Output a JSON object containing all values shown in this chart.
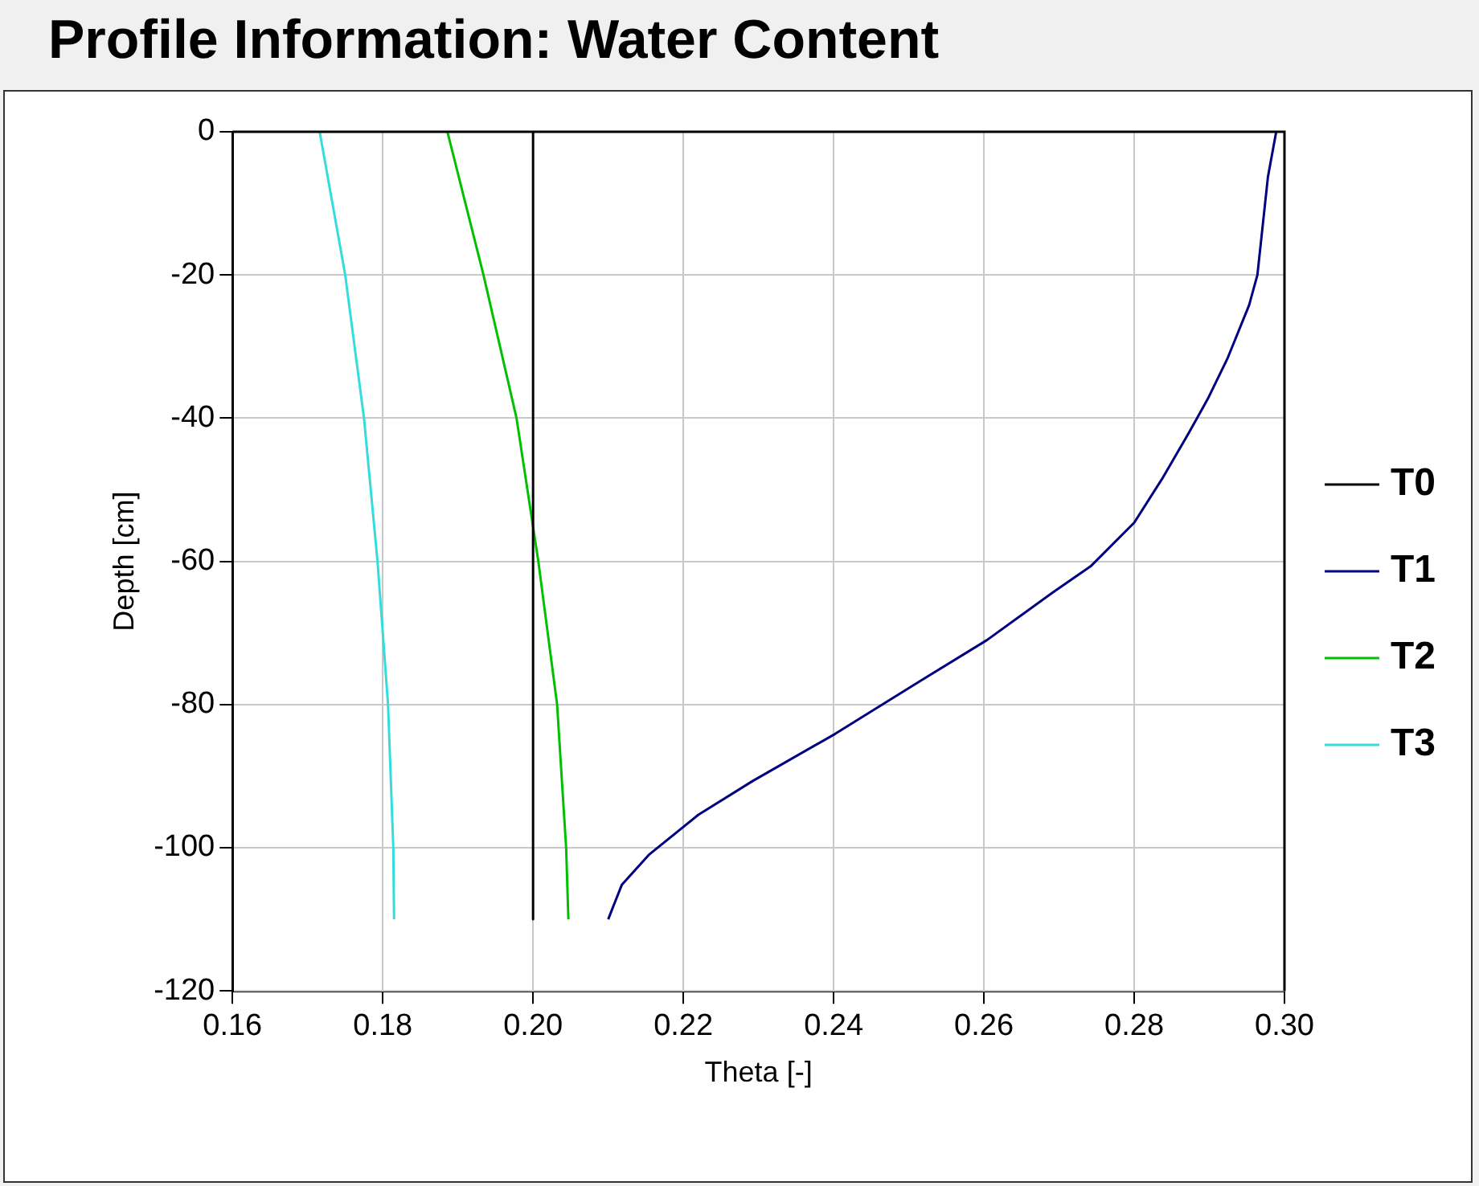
{
  "chart_data": {
    "type": "line",
    "title": "Profile Information:  Water Content",
    "xlabel": "Theta [-]",
    "ylabel": "Depth [cm]",
    "xlim": [
      0.16,
      0.3
    ],
    "xticks": [
      {
        "value": 0.16,
        "label": "0.16"
      },
      {
        "value": 0.18,
        "label": "0.18"
      },
      {
        "value": 0.2,
        "label": "0.20"
      },
      {
        "value": 0.22,
        "label": "0.22"
      },
      {
        "value": 0.24,
        "label": "0.24"
      },
      {
        "value": 0.26,
        "label": "0.26"
      },
      {
        "value": 0.28,
        "label": "0.28"
      },
      {
        "value": 0.3,
        "label": "0.30"
      }
    ],
    "ylim": [
      -120,
      0
    ],
    "yticks": [
      -120,
      -100,
      -80,
      -60,
      -40,
      -20,
      0
    ],
    "grid": true,
    "legend": "right",
    "marker": "none",
    "line_style": "solid",
    "series": [
      {
        "name": "T0",
        "color": "#000000",
        "x": [
          0.2,
          0.2
        ],
        "values": [
          0,
          -110
        ]
      },
      {
        "name": "T1",
        "color": "#000080",
        "x": [
          0.2989,
          0.2978,
          0.2964,
          0.2953,
          0.2924,
          0.2898,
          0.2873,
          0.2837,
          0.28,
          0.2742,
          0.2691,
          0.2604,
          0.2517,
          0.2402,
          0.2292,
          0.222,
          0.2154,
          0.2118,
          0.21
        ],
        "values": [
          0,
          -6.3,
          -20,
          -24.2,
          -31.7,
          -37.3,
          -42,
          -48.5,
          -54.6,
          -60.7,
          -64.4,
          -71,
          -76.6,
          -84.1,
          -90.7,
          -95.4,
          -101,
          -105.2,
          -110
        ]
      },
      {
        "name": "T2",
        "color": "#00c000",
        "x": [
          0.1886,
          0.1934,
          0.1978,
          0.2007,
          0.2032,
          0.2044,
          0.2047
        ],
        "values": [
          0,
          -20,
          -40,
          -60,
          -80,
          -100,
          -110
        ]
      },
      {
        "name": "T3",
        "color": "#33dddd",
        "x": [
          0.1716,
          0.175,
          0.1775,
          0.1793,
          0.1807,
          0.1814,
          0.1815
        ],
        "values": [
          0,
          -20,
          -40,
          -60,
          -80,
          -100,
          -110
        ]
      }
    ]
  }
}
